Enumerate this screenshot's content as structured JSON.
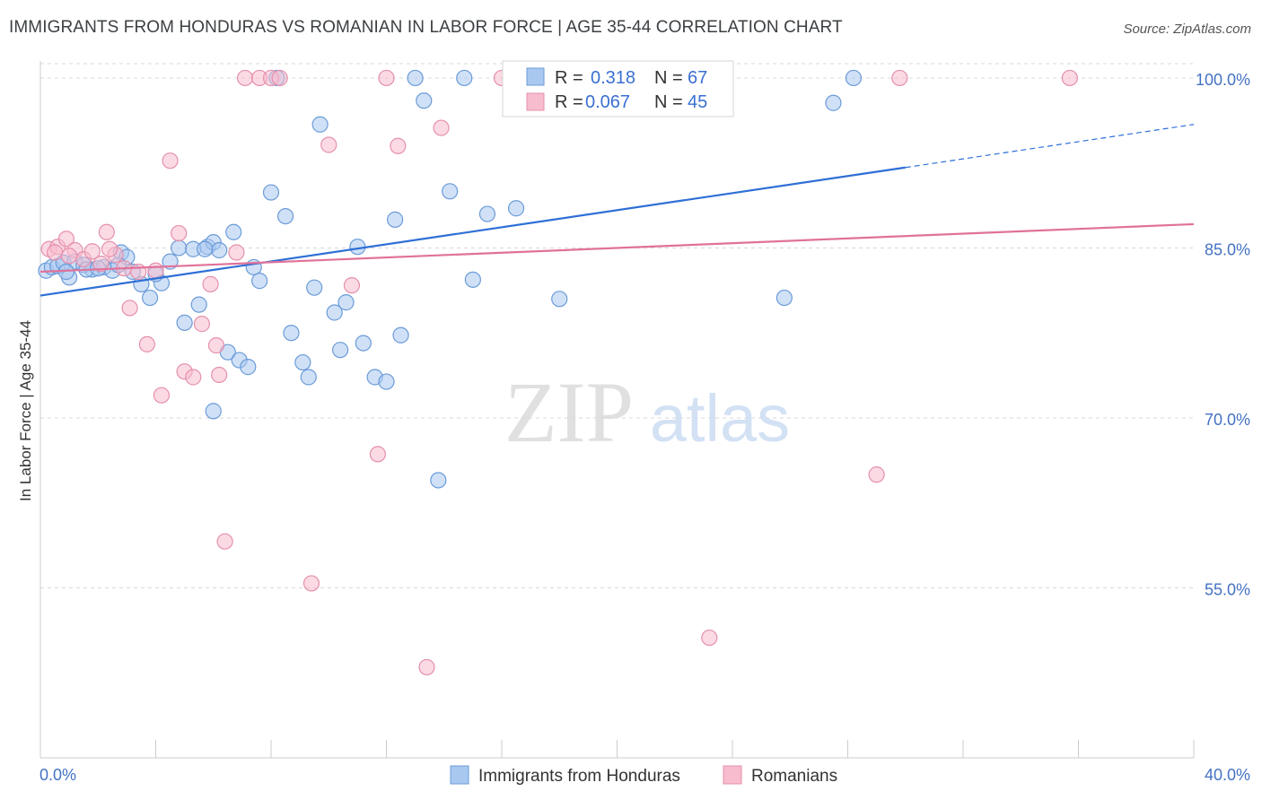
{
  "title": "IMMIGRANTS FROM HONDURAS VS ROMANIAN IN LABOR FORCE | AGE 35-44 CORRELATION CHART",
  "source": "Source: ZipAtlas.com",
  "watermark": {
    "zip": "ZIP",
    "atlas": "atlas"
  },
  "colors": {
    "blue_fill": "#a9c8f0",
    "blue_stroke": "#6b9bd8",
    "blue_line": "#2e6fd6",
    "pink_fill": "#f7bccd",
    "pink_stroke": "#e590ac",
    "pink_line": "#e0729a",
    "grid": "#d8d8d8",
    "tick_label": "#4472c4"
  },
  "legend_box": {
    "rows": [
      {
        "r_label": "R =",
        "r_value": "0.318",
        "n_label": "N =",
        "n_value": "67"
      },
      {
        "r_label": "R =",
        "r_value": "0.067",
        "n_label": "N =",
        "n_value": "45"
      }
    ]
  },
  "chart_data": {
    "type": "scatter",
    "xlim": [
      0,
      40
    ],
    "ylim": [
      40,
      101.5
    ],
    "x_tick_labels": [
      "0.0%",
      "40.0%"
    ],
    "y_ticks": [
      55,
      70,
      85,
      100
    ],
    "y_tick_labels": [
      "55.0%",
      "70.0%",
      "85.0%",
      "100.0%"
    ],
    "ylabel": "In Labor Force | Age 35-44",
    "grid": true,
    "legend_placement": "top-center",
    "series": [
      {
        "name": "Immigrants from Honduras",
        "r": 0.318,
        "n": 67,
        "trend": {
          "x0": 0,
          "y0": 80.8,
          "x1": 30.0,
          "y1": 92.1,
          "dash_x1": 40,
          "dash_y1": 95.9
        },
        "points": [
          [
            0.2,
            83.0
          ],
          [
            0.4,
            83.3
          ],
          [
            0.6,
            83.4
          ],
          [
            0.8,
            83.7
          ],
          [
            1.0,
            82.4
          ],
          [
            1.2,
            83.8
          ],
          [
            1.5,
            83.5
          ],
          [
            1.8,
            83.1
          ],
          [
            2.2,
            83.3
          ],
          [
            2.5,
            83.0
          ],
          [
            2.8,
            84.6
          ],
          [
            3.0,
            84.2
          ],
          [
            3.5,
            81.8
          ],
          [
            3.8,
            80.6
          ],
          [
            4.2,
            81.9
          ],
          [
            4.5,
            83.8
          ],
          [
            4.8,
            85.0
          ],
          [
            5.0,
            78.4
          ],
          [
            5.3,
            84.9
          ],
          [
            5.5,
            80.0
          ],
          [
            5.8,
            85.1
          ],
          [
            6.0,
            85.5
          ],
          [
            6.2,
            84.8
          ],
          [
            6.5,
            75.8
          ],
          [
            6.7,
            86.4
          ],
          [
            6.9,
            75.1
          ],
          [
            7.2,
            74.5
          ],
          [
            7.4,
            83.3
          ],
          [
            7.6,
            82.1
          ],
          [
            8.0,
            89.9
          ],
          [
            8.2,
            100.0
          ],
          [
            8.5,
            87.8
          ],
          [
            8.7,
            77.5
          ],
          [
            9.1,
            74.9
          ],
          [
            9.3,
            73.6
          ],
          [
            9.5,
            81.5
          ],
          [
            9.7,
            95.9
          ],
          [
            10.2,
            79.3
          ],
          [
            10.4,
            76.0
          ],
          [
            10.6,
            80.2
          ],
          [
            11.0,
            85.1
          ],
          [
            11.2,
            76.6
          ],
          [
            11.6,
            73.6
          ],
          [
            12.0,
            73.2
          ],
          [
            12.3,
            87.5
          ],
          [
            12.5,
            77.3
          ],
          [
            13.0,
            100.0
          ],
          [
            13.3,
            98.0
          ],
          [
            13.8,
            64.5
          ],
          [
            14.2,
            90.0
          ],
          [
            14.7,
            100.0
          ],
          [
            15.0,
            82.2
          ],
          [
            15.5,
            88.0
          ],
          [
            16.5,
            88.5
          ],
          [
            18.0,
            80.5
          ],
          [
            22.5,
            98.0
          ],
          [
            25.8,
            80.6
          ],
          [
            27.5,
            97.8
          ],
          [
            28.2,
            100.0
          ],
          [
            6.0,
            70.6
          ],
          [
            3.2,
            82.9
          ],
          [
            1.6,
            83.1
          ],
          [
            0.9,
            82.9
          ],
          [
            4.0,
            82.7
          ],
          [
            2.0,
            83.2
          ],
          [
            2.7,
            83.5
          ],
          [
            5.7,
            84.9
          ]
        ]
      },
      {
        "name": "Romanians",
        "r": 0.067,
        "n": 45,
        "trend": {
          "x0": 0,
          "y0": 82.9,
          "x1": 40,
          "y1": 87.1
        },
        "points": [
          [
            0.3,
            84.9
          ],
          [
            0.6,
            85.1
          ],
          [
            0.9,
            85.8
          ],
          [
            1.2,
            84.8
          ],
          [
            1.5,
            84.0
          ],
          [
            1.8,
            84.7
          ],
          [
            2.1,
            83.6
          ],
          [
            2.3,
            86.4
          ],
          [
            2.6,
            84.4
          ],
          [
            2.9,
            83.2
          ],
          [
            3.1,
            79.7
          ],
          [
            3.4,
            82.9
          ],
          [
            3.7,
            76.5
          ],
          [
            4.0,
            83.0
          ],
          [
            4.2,
            72.0
          ],
          [
            4.5,
            92.7
          ],
          [
            4.8,
            86.3
          ],
          [
            5.0,
            74.1
          ],
          [
            5.3,
            73.6
          ],
          [
            5.6,
            78.3
          ],
          [
            5.9,
            81.8
          ],
          [
            6.1,
            76.4
          ],
          [
            6.2,
            73.8
          ],
          [
            6.4,
            59.1
          ],
          [
            6.8,
            84.6
          ],
          [
            7.1,
            100.0
          ],
          [
            7.6,
            100.0
          ],
          [
            8.0,
            100.0
          ],
          [
            8.3,
            100.0
          ],
          [
            9.4,
            55.4
          ],
          [
            10.0,
            94.1
          ],
          [
            10.8,
            81.7
          ],
          [
            11.7,
            66.8
          ],
          [
            12.0,
            100.0
          ],
          [
            12.4,
            94.0
          ],
          [
            13.4,
            48.0
          ],
          [
            13.9,
            95.6
          ],
          [
            16.0,
            100.0
          ],
          [
            23.2,
            50.6
          ],
          [
            29.0,
            65.0
          ],
          [
            29.8,
            100.0
          ],
          [
            35.7,
            100.0
          ],
          [
            0.5,
            84.6
          ],
          [
            1.0,
            84.3
          ],
          [
            2.4,
            84.9
          ]
        ]
      }
    ]
  }
}
